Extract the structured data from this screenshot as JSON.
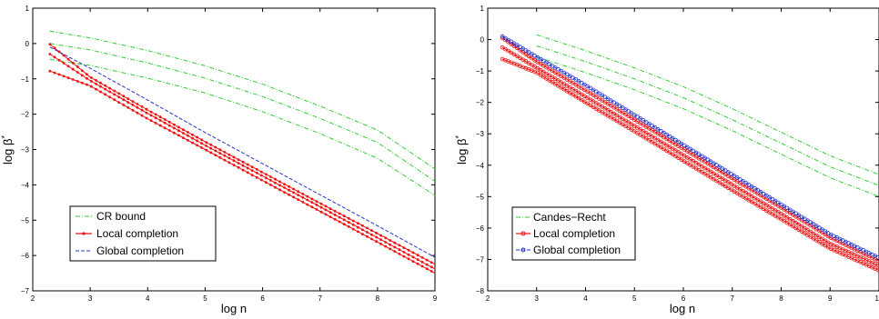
{
  "chart_data": [
    {
      "type": "line",
      "xlabel": "log n",
      "ylabel": "log β",
      "ylabel_superscript": "*",
      "xlim": [
        2,
        9
      ],
      "ylim": [
        -7,
        1
      ],
      "xticks": [
        "2",
        "3",
        "4",
        "5",
        "6",
        "7",
        "8",
        "9"
      ],
      "yticks": [
        "1",
        "0",
        "−1",
        "−2",
        "−3",
        "−4",
        "−5",
        "−6",
        "−7"
      ],
      "grid": false,
      "legend_position": "bottom-left",
      "legend": [
        "CR bound",
        "Local completion",
        "Global completion"
      ],
      "colors": {
        "cr": "#33cc33",
        "local": "#ee1111",
        "global": "#2233cc"
      },
      "series": [
        {
          "group": "cr",
          "style": "dash-dot",
          "x": [
            2.3,
            3,
            4,
            5,
            6,
            7,
            8,
            9
          ],
          "y": [
            0.35,
            0.16,
            -0.2,
            -0.63,
            -1.15,
            -1.77,
            -2.45,
            -3.55
          ]
        },
        {
          "group": "cr",
          "style": "dash-dot",
          "x": [
            2.3,
            3,
            4,
            5,
            6,
            7,
            8,
            9
          ],
          "y": [
            0.0,
            -0.18,
            -0.55,
            -0.98,
            -1.5,
            -2.12,
            -2.8,
            -3.9
          ]
        },
        {
          "group": "cr",
          "style": "dash-dot",
          "x": [
            2.3,
            3,
            4,
            5,
            6,
            7,
            8,
            9
          ],
          "y": [
            -0.45,
            -0.62,
            -0.98,
            -1.4,
            -1.93,
            -2.55,
            -3.25,
            -4.3
          ]
        },
        {
          "group": "local",
          "style": "solid-marker",
          "x": [
            2.3,
            3,
            4,
            5,
            6,
            7,
            8,
            9
          ],
          "y": [
            -0.02,
            -0.95,
            -1.88,
            -2.78,
            -3.65,
            -4.52,
            -5.38,
            -6.25
          ]
        },
        {
          "group": "local",
          "style": "solid-marker",
          "x": [
            2.3,
            3,
            4,
            5,
            6,
            7,
            8,
            9
          ],
          "y": [
            -0.3,
            -1.05,
            -1.98,
            -2.88,
            -3.75,
            -4.62,
            -5.5,
            -6.38
          ]
        },
        {
          "group": "local",
          "style": "solid-marker",
          "x": [
            2.3,
            3,
            4,
            5,
            6,
            7,
            8,
            9
          ],
          "y": [
            -0.78,
            -1.2,
            -2.13,
            -3.0,
            -3.88,
            -4.75,
            -5.62,
            -6.5
          ]
        },
        {
          "group": "global",
          "style": "dashed",
          "x": [
            2.3,
            3,
            4,
            5,
            6,
            7,
            8,
            9
          ],
          "y": [
            -0.1,
            -0.7,
            -1.6,
            -2.52,
            -3.4,
            -4.28,
            -5.16,
            -6.05
          ]
        }
      ]
    },
    {
      "type": "line",
      "xlabel": "log n",
      "ylabel": "log β",
      "ylabel_superscript": "*",
      "xlim": [
        2,
        10
      ],
      "ylim": [
        -8,
        1
      ],
      "xticks": [
        "2",
        "3",
        "4",
        "5",
        "6",
        "7",
        "8",
        "9",
        "10"
      ],
      "yticks": [
        "1",
        "0",
        "−1",
        "−2",
        "−3",
        "−4",
        "−5",
        "−6",
        "−7",
        "−8"
      ],
      "grid": false,
      "legend_position": "bottom-left",
      "legend": [
        "Candes−Recht",
        "Local completion",
        "Global completion"
      ],
      "colors": {
        "cr": "#33cc33",
        "local": "#ee1111",
        "global": "#2233cc"
      },
      "series": [
        {
          "group": "cr",
          "style": "dash-dot",
          "x": [
            3,
            4,
            5,
            6,
            7,
            8,
            9,
            10
          ],
          "y": [
            0.15,
            -0.35,
            -0.9,
            -1.5,
            -2.2,
            -2.95,
            -3.7,
            -4.3
          ]
        },
        {
          "group": "cr",
          "style": "dash-dot",
          "x": [
            3,
            4,
            5,
            6,
            7,
            8,
            9,
            10
          ],
          "y": [
            -0.2,
            -0.7,
            -1.25,
            -1.85,
            -2.55,
            -3.3,
            -4.05,
            -4.65
          ]
        },
        {
          "group": "cr",
          "style": "dash-dot",
          "x": [
            3,
            4,
            5,
            6,
            7,
            8,
            9,
            10
          ],
          "y": [
            -0.55,
            -1.05,
            -1.6,
            -2.2,
            -2.9,
            -3.65,
            -4.4,
            -5.0
          ]
        },
        {
          "group": "local",
          "style": "solid-marker",
          "x": [
            2.3,
            3,
            4,
            5,
            6,
            7,
            8,
            9,
            10
          ],
          "y": [
            0.05,
            -0.7,
            -1.62,
            -2.55,
            -3.48,
            -4.42,
            -5.35,
            -6.3,
            -7.05
          ]
        },
        {
          "group": "local",
          "style": "solid-marker",
          "x": [
            2.3,
            3,
            4,
            5,
            6,
            7,
            8,
            9,
            10
          ],
          "y": [
            -0.25,
            -0.9,
            -1.82,
            -2.75,
            -3.68,
            -4.62,
            -5.55,
            -6.5,
            -7.2
          ]
        },
        {
          "group": "local",
          "style": "solid-marker",
          "x": [
            2.3,
            3,
            4,
            5,
            6,
            7,
            8,
            9,
            10
          ],
          "y": [
            -0.62,
            -1.05,
            -2.0,
            -2.92,
            -3.86,
            -4.8,
            -5.72,
            -6.65,
            -7.35
          ]
        },
        {
          "group": "global",
          "style": "dashed-marker",
          "x": [
            2.3,
            3,
            4,
            5,
            6,
            7,
            8,
            9,
            10
          ],
          "y": [
            0.1,
            -0.55,
            -1.45,
            -2.4,
            -3.35,
            -4.3,
            -5.25,
            -6.2,
            -6.95
          ]
        }
      ]
    }
  ]
}
